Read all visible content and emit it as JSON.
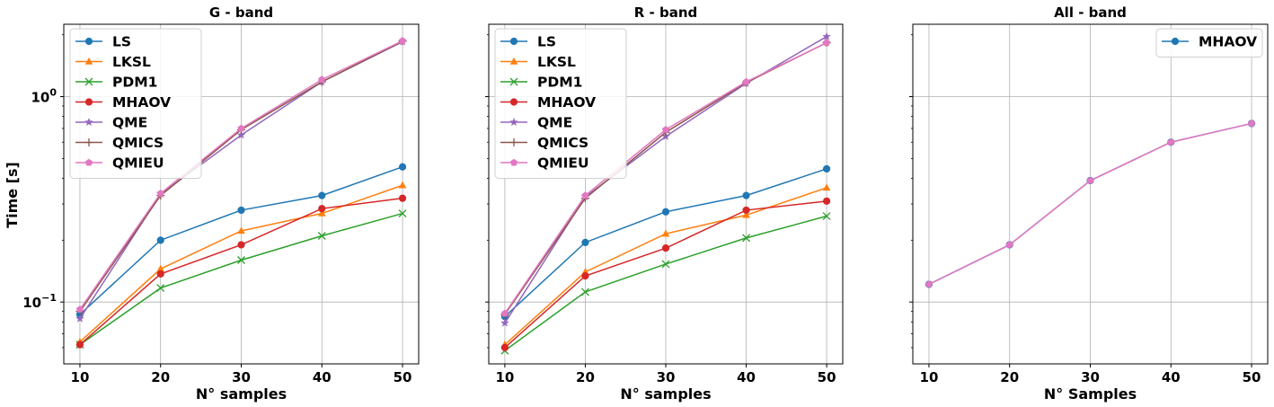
{
  "chart_data": [
    {
      "type": "line",
      "title": "G - band",
      "xlabel": "N° samples",
      "ylabel": "Time [s]",
      "yscale": "log",
      "ylim": [
        0.05,
        2.25
      ],
      "xlim": [
        8,
        52
      ],
      "x": [
        10,
        20,
        30,
        40,
        50
      ],
      "xticklabels": [
        "10",
        "20",
        "30",
        "40",
        "50"
      ],
      "yticks": [
        {
          "value": 0.1,
          "base": "10",
          "exp": "−1"
        },
        {
          "value": 1,
          "base": "10",
          "exp": "0"
        }
      ],
      "grid": true,
      "legend": "upper-left",
      "series": [
        {
          "name": "LS",
          "color": "#1f77b4",
          "marker": "circle",
          "values": [
            0.087,
            0.2,
            0.28,
            0.33,
            0.455
          ]
        },
        {
          "name": "LKSL",
          "color": "#ff7f0e",
          "marker": "triangle",
          "values": [
            0.064,
            0.145,
            0.222,
            0.27,
            0.37
          ]
        },
        {
          "name": "PDM1",
          "color": "#2ca02c",
          "marker": "x",
          "values": [
            0.062,
            0.117,
            0.16,
            0.21,
            0.27
          ]
        },
        {
          "name": "MHAOV",
          "color": "#d62728",
          "marker": "circle",
          "values": [
            0.062,
            0.137,
            0.19,
            0.285,
            0.32
          ]
        },
        {
          "name": "QME",
          "color": "#9467bd",
          "marker": "star",
          "values": [
            0.083,
            0.335,
            0.65,
            1.18,
            1.85
          ]
        },
        {
          "name": "QMICS",
          "color": "#8c564b",
          "marker": "plus",
          "values": [
            0.09,
            0.33,
            0.69,
            1.18,
            1.86
          ]
        },
        {
          "name": "QMIEU",
          "color": "#e377c2",
          "marker": "pentagon",
          "values": [
            0.092,
            0.338,
            0.7,
            1.21,
            1.87
          ]
        }
      ]
    },
    {
      "type": "line",
      "title": "R - band",
      "xlabel": "N° samples",
      "ylabel": "",
      "yscale": "log",
      "ylim": [
        0.05,
        2.25
      ],
      "xlim": [
        8,
        52
      ],
      "x": [
        10,
        20,
        30,
        40,
        50
      ],
      "xticklabels": [
        "10",
        "20",
        "30",
        "40",
        "50"
      ],
      "grid": true,
      "legend": "upper-left",
      "series": [
        {
          "name": "LS",
          "color": "#1f77b4",
          "marker": "circle",
          "values": [
            0.085,
            0.195,
            0.275,
            0.33,
            0.445
          ]
        },
        {
          "name": "LKSL",
          "color": "#ff7f0e",
          "marker": "triangle",
          "values": [
            0.062,
            0.14,
            0.215,
            0.265,
            0.36
          ]
        },
        {
          "name": "PDM1",
          "color": "#2ca02c",
          "marker": "x",
          "values": [
            0.058,
            0.112,
            0.153,
            0.205,
            0.262
          ]
        },
        {
          "name": "MHAOV",
          "color": "#d62728",
          "marker": "circle",
          "values": [
            0.06,
            0.134,
            0.183,
            0.28,
            0.31
          ]
        },
        {
          "name": "QME",
          "color": "#9467bd",
          "marker": "star",
          "values": [
            0.079,
            0.325,
            0.64,
            1.16,
            1.96
          ]
        },
        {
          "name": "QMICS",
          "color": "#8c564b",
          "marker": "plus",
          "values": [
            0.087,
            0.32,
            0.67,
            1.17,
            1.83
          ]
        },
        {
          "name": "QMIEU",
          "color": "#e377c2",
          "marker": "pentagon",
          "values": [
            0.088,
            0.33,
            0.69,
            1.18,
            1.83
          ]
        }
      ]
    },
    {
      "type": "line",
      "title": "All - band",
      "xlabel": "N° Samples",
      "ylabel": "",
      "yscale": "log",
      "ylim": [
        0.05,
        2.25
      ],
      "xlim": [
        8,
        52
      ],
      "x": [
        10,
        20,
        30,
        40,
        50
      ],
      "xticklabels": [
        "10",
        "20",
        "30",
        "40",
        "50"
      ],
      "grid": true,
      "legend": "upper-right",
      "series": [
        {
          "name": "MHAOV",
          "color": "#1f77b4",
          "marker": "circle",
          "values": [
            0.122,
            0.19,
            0.39,
            0.6,
            0.74
          ]
        },
        {
          "name": "",
          "color": "#e377c2",
          "marker": "pentagon",
          "values": [
            0.122,
            0.19,
            0.39,
            0.6,
            0.74
          ],
          "in_legend": false
        }
      ]
    }
  ]
}
